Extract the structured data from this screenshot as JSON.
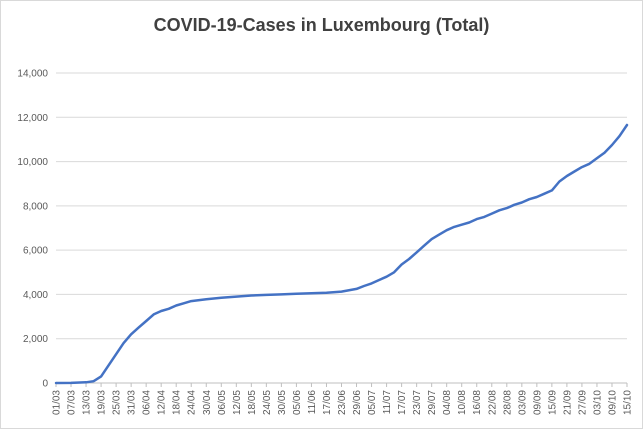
{
  "chart_data": {
    "type": "line",
    "title": "COVID-19-Cases in Luxembourg (Total)",
    "xlabel": "",
    "ylabel": "",
    "ylim": [
      0,
      14000
    ],
    "yticks": [
      "0",
      "2,000",
      "4,000",
      "6,000",
      "8,000",
      "10,000",
      "12,000",
      "14,000"
    ],
    "ytick_values": [
      0,
      2000,
      4000,
      6000,
      8000,
      10000,
      12000,
      14000
    ],
    "grid": true,
    "line_color": "#4472c4",
    "xticks": [
      "01/03",
      "07/03",
      "13/03",
      "19/03",
      "25/03",
      "31/03",
      "06/04",
      "12/04",
      "18/04",
      "24/04",
      "30/04",
      "06/05",
      "12/05",
      "18/05",
      "24/05",
      "30/05",
      "05/06",
      "11/06",
      "17/06",
      "23/06",
      "29/06",
      "05/07",
      "11/07",
      "17/07",
      "23/07",
      "29/07",
      "04/08",
      "10/08",
      "16/08",
      "22/08",
      "28/08",
      "03/09",
      "09/09",
      "15/09",
      "21/09",
      "27/09",
      "03/10",
      "09/10",
      "15/10"
    ],
    "series": [
      {
        "values": [
          {
            "x": "01/03",
            "y": 0
          },
          {
            "x": "07/03",
            "y": 5
          },
          {
            "x": "13/03",
            "y": 30
          },
          {
            "x": "16/03",
            "y": 80
          },
          {
            "x": "19/03",
            "y": 300
          },
          {
            "x": "22/03",
            "y": 800
          },
          {
            "x": "25/03",
            "y": 1300
          },
          {
            "x": "28/03",
            "y": 1800
          },
          {
            "x": "31/03",
            "y": 2200
          },
          {
            "x": "03/04",
            "y": 2500
          },
          {
            "x": "06/04",
            "y": 2800
          },
          {
            "x": "09/04",
            "y": 3100
          },
          {
            "x": "12/04",
            "y": 3250
          },
          {
            "x": "15/04",
            "y": 3350
          },
          {
            "x": "18/04",
            "y": 3500
          },
          {
            "x": "21/04",
            "y": 3600
          },
          {
            "x": "24/04",
            "y": 3700
          },
          {
            "x": "30/04",
            "y": 3780
          },
          {
            "x": "06/05",
            "y": 3850
          },
          {
            "x": "12/05",
            "y": 3900
          },
          {
            "x": "18/05",
            "y": 3950
          },
          {
            "x": "24/05",
            "y": 3980
          },
          {
            "x": "30/05",
            "y": 4000
          },
          {
            "x": "05/06",
            "y": 4030
          },
          {
            "x": "11/06",
            "y": 4050
          },
          {
            "x": "17/06",
            "y": 4080
          },
          {
            "x": "23/06",
            "y": 4130
          },
          {
            "x": "29/06",
            "y": 4250
          },
          {
            "x": "02/07",
            "y": 4380
          },
          {
            "x": "05/07",
            "y": 4500
          },
          {
            "x": "08/07",
            "y": 4650
          },
          {
            "x": "11/07",
            "y": 4800
          },
          {
            "x": "14/07",
            "y": 5000
          },
          {
            "x": "17/07",
            "y": 5350
          },
          {
            "x": "20/07",
            "y": 5600
          },
          {
            "x": "23/07",
            "y": 5900
          },
          {
            "x": "26/07",
            "y": 6200
          },
          {
            "x": "29/07",
            "y": 6500
          },
          {
            "x": "01/08",
            "y": 6700
          },
          {
            "x": "04/08",
            "y": 6900
          },
          {
            "x": "07/08",
            "y": 7050
          },
          {
            "x": "10/08",
            "y": 7150
          },
          {
            "x": "13/08",
            "y": 7250
          },
          {
            "x": "16/08",
            "y": 7400
          },
          {
            "x": "19/08",
            "y": 7500
          },
          {
            "x": "22/08",
            "y": 7650
          },
          {
            "x": "25/08",
            "y": 7800
          },
          {
            "x": "28/08",
            "y": 7900
          },
          {
            "x": "31/08",
            "y": 8050
          },
          {
            "x": "03/09",
            "y": 8150
          },
          {
            "x": "06/09",
            "y": 8300
          },
          {
            "x": "09/09",
            "y": 8400
          },
          {
            "x": "12/09",
            "y": 8550
          },
          {
            "x": "15/09",
            "y": 8700
          },
          {
            "x": "18/09",
            "y": 9100
          },
          {
            "x": "21/09",
            "y": 9350
          },
          {
            "x": "24/09",
            "y": 9550
          },
          {
            "x": "27/09",
            "y": 9750
          },
          {
            "x": "30/09",
            "y": 9900
          },
          {
            "x": "03/10",
            "y": 10150
          },
          {
            "x": "06/10",
            "y": 10400
          },
          {
            "x": "09/10",
            "y": 10750
          },
          {
            "x": "12/10",
            "y": 11150
          },
          {
            "x": "15/10",
            "y": 11650
          }
        ]
      }
    ]
  }
}
